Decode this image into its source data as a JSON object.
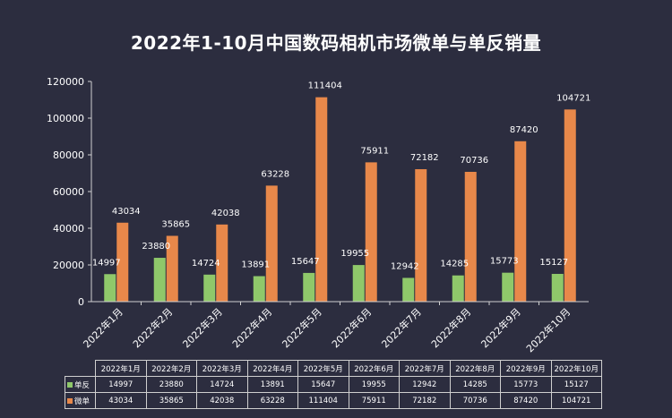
{
  "chart_data": {
    "type": "bar",
    "title": "2022年1-10月中国数码相机市场微单与单反销量",
    "categories": [
      "2022年1月",
      "2022年2月",
      "2022年3月",
      "2022年4月",
      "2022年5月",
      "2022年6月",
      "2022年7月",
      "2022年8月",
      "2022年9月",
      "2022年10月"
    ],
    "series": [
      {
        "name": "单反",
        "color": "#8fc86a",
        "values": [
          14997,
          23880,
          14724,
          13891,
          15647,
          19955,
          12942,
          14285,
          15773,
          15127
        ]
      },
      {
        "name": "微单",
        "color": "#e8884a",
        "values": [
          43034,
          35865,
          42038,
          63228,
          111404,
          75911,
          72182,
          70736,
          87420,
          104721
        ]
      }
    ],
    "ylim": [
      0,
      120000
    ],
    "yticks": [
      0,
      20000,
      40000,
      60000,
      80000,
      100000,
      120000
    ],
    "xlabel": "",
    "ylabel": "",
    "grid": false,
    "legend": "data-table"
  }
}
